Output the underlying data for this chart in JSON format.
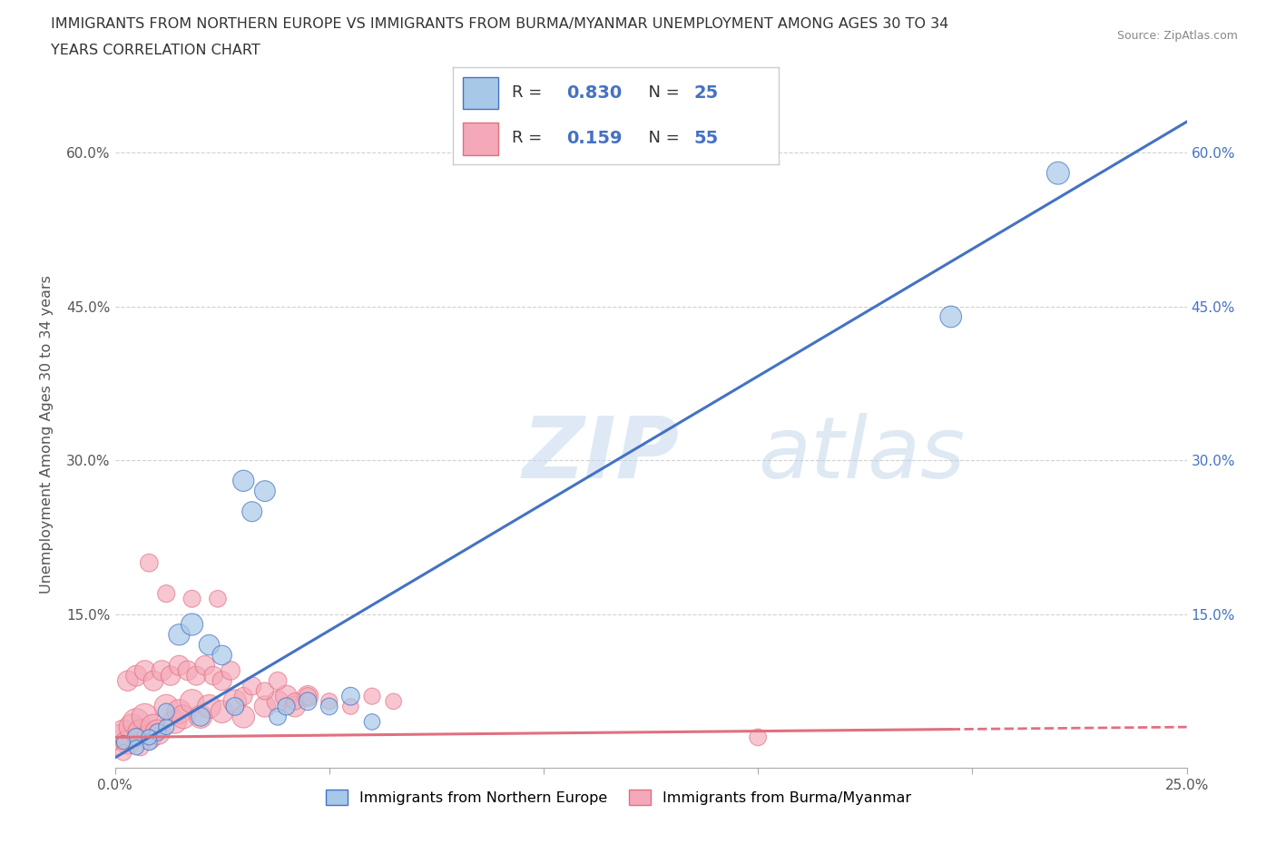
{
  "title_line1": "IMMIGRANTS FROM NORTHERN EUROPE VS IMMIGRANTS FROM BURMA/MYANMAR UNEMPLOYMENT AMONG AGES 30 TO 34",
  "title_line2": "YEARS CORRELATION CHART",
  "source": "Source: ZipAtlas.com",
  "ylabel": "Unemployment Among Ages 30 to 34 years",
  "xlim": [
    0.0,
    0.25
  ],
  "ylim": [
    0.0,
    0.65
  ],
  "xticks": [
    0.0,
    0.05,
    0.1,
    0.15,
    0.2,
    0.25
  ],
  "xtick_labels": [
    "0.0%",
    "",
    "",
    "",
    "",
    "25.0%"
  ],
  "yticks": [
    0.0,
    0.15,
    0.3,
    0.45,
    0.6
  ],
  "ytick_labels": [
    "",
    "15.0%",
    "30.0%",
    "45.0%",
    "60.0%"
  ],
  "ytick_labels_right": [
    "",
    "15.0%",
    "30.0%",
    "45.0%",
    "60.0%"
  ],
  "watermark": "ZIPatlas",
  "blue_R": 0.83,
  "blue_N": 25,
  "pink_R": 0.159,
  "pink_N": 55,
  "blue_color": "#a8c8e8",
  "pink_color": "#f4a8b8",
  "blue_line_color": "#4472c4",
  "pink_line_color": "#e07080",
  "blue_scatter_x": [
    0.005,
    0.008,
    0.01,
    0.012,
    0.015,
    0.018,
    0.02,
    0.022,
    0.025,
    0.028,
    0.03,
    0.032,
    0.035,
    0.038,
    0.04,
    0.045,
    0.05,
    0.055,
    0.06,
    0.005,
    0.008,
    0.012,
    0.22,
    0.002,
    0.195
  ],
  "blue_scatter_y": [
    0.03,
    0.025,
    0.035,
    0.04,
    0.13,
    0.14,
    0.05,
    0.12,
    0.11,
    0.06,
    0.28,
    0.25,
    0.27,
    0.05,
    0.06,
    0.065,
    0.06,
    0.07,
    0.045,
    0.02,
    0.03,
    0.055,
    0.58,
    0.025,
    0.44
  ],
  "blue_scatter_size": [
    200,
    160,
    180,
    150,
    280,
    300,
    220,
    260,
    240,
    200,
    280,
    250,
    270,
    180,
    190,
    200,
    180,
    200,
    160,
    140,
    150,
    170,
    320,
    120,
    290
  ],
  "pink_scatter_x": [
    0.001,
    0.002,
    0.003,
    0.004,
    0.005,
    0.006,
    0.007,
    0.008,
    0.009,
    0.01,
    0.012,
    0.014,
    0.015,
    0.016,
    0.018,
    0.02,
    0.022,
    0.025,
    0.028,
    0.03,
    0.035,
    0.038,
    0.04,
    0.042,
    0.045,
    0.003,
    0.005,
    0.007,
    0.009,
    0.011,
    0.013,
    0.015,
    0.017,
    0.019,
    0.021,
    0.023,
    0.025,
    0.027,
    0.03,
    0.032,
    0.035,
    0.038,
    0.042,
    0.045,
    0.05,
    0.055,
    0.06,
    0.065,
    0.15,
    0.008,
    0.012,
    0.018,
    0.024,
    0.006,
    0.002
  ],
  "pink_scatter_y": [
    0.03,
    0.035,
    0.025,
    0.04,
    0.045,
    0.035,
    0.05,
    0.03,
    0.04,
    0.035,
    0.06,
    0.045,
    0.055,
    0.05,
    0.065,
    0.05,
    0.06,
    0.055,
    0.065,
    0.05,
    0.06,
    0.065,
    0.07,
    0.06,
    0.07,
    0.085,
    0.09,
    0.095,
    0.085,
    0.095,
    0.09,
    0.1,
    0.095,
    0.09,
    0.1,
    0.09,
    0.085,
    0.095,
    0.07,
    0.08,
    0.075,
    0.085,
    0.065,
    0.07,
    0.065,
    0.06,
    0.07,
    0.065,
    0.03,
    0.2,
    0.17,
    0.165,
    0.165,
    0.02,
    0.015
  ],
  "pink_scatter_size": [
    400,
    380,
    360,
    420,
    450,
    400,
    430,
    380,
    400,
    390,
    360,
    340,
    370,
    350,
    360,
    330,
    350,
    320,
    340,
    310,
    280,
    290,
    300,
    270,
    280,
    260,
    270,
    260,
    250,
    260,
    240,
    250,
    240,
    230,
    240,
    220,
    230,
    220,
    200,
    210,
    190,
    200,
    180,
    190,
    170,
    160,
    170,
    160,
    180,
    200,
    190,
    185,
    180,
    170,
    160
  ]
}
